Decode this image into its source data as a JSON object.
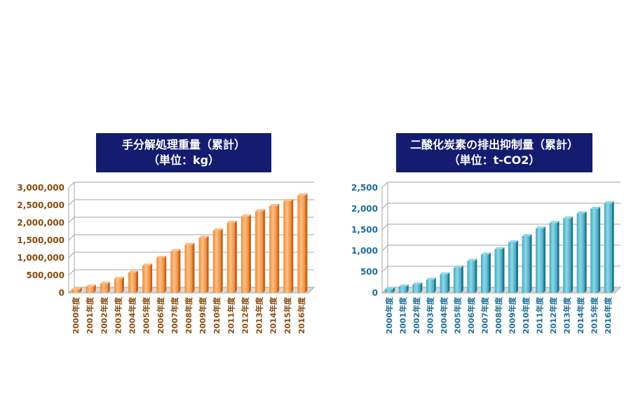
{
  "charts": [
    {
      "id": "left",
      "title_line1": "手分解処理重量（累計）",
      "title_line2": "（単位：kg）",
      "text_color": "#8a4a0a",
      "bar_light": "#fbc08a",
      "bar_mid": "#f28a2e",
      "bar_dark": "#c8631a",
      "yticks": [
        "0",
        "500,000",
        "1,000,000",
        "1,500,000",
        "2,000,000",
        "2,500,000",
        "3,000,000"
      ]
    },
    {
      "id": "right",
      "title_line1": "二酸化炭素の排出抑制量（累計）",
      "title_line2": "（単位：t-CO2）",
      "text_color": "#1a6f9a",
      "bar_light": "#8fd8e6",
      "bar_mid": "#3fa9c1",
      "bar_dark": "#23788e",
      "yticks": [
        "0",
        "500",
        "1,000",
        "1,500",
        "2,000",
        "2,500"
      ]
    }
  ],
  "chart_data": [
    {
      "type": "bar",
      "title": "手分解処理重量（累計）（単位：kg）",
      "categories": [
        "2000年度",
        "2001年度",
        "2002年度",
        "2003年度",
        "2004年度",
        "2005年度",
        "2006年度",
        "2007年度",
        "2008年度",
        "2009年度",
        "2010年度",
        "2011年度",
        "2012年度",
        "2013年度",
        "2014年度",
        "2015年度",
        "2016年度"
      ],
      "values": [
        100000,
        180000,
        260000,
        400000,
        580000,
        780000,
        1000000,
        1190000,
        1370000,
        1570000,
        1780000,
        2000000,
        2180000,
        2330000,
        2480000,
        2620000,
        2780000
      ],
      "ylim": [
        0,
        3000000
      ],
      "grid": true
    },
    {
      "type": "bar",
      "title": "二酸化炭素の排出抑制量（累計）（単位：t-CO2）",
      "categories": [
        "2000年度",
        "2001年度",
        "2002年度",
        "2003年度",
        "2004年度",
        "2005年度",
        "2006年度",
        "2007年度",
        "2008年度",
        "2009年度",
        "2010年度",
        "2011年度",
        "2012年度",
        "2013年度",
        "2014年度",
        "2015年度",
        "2016年度"
      ],
      "values": [
        90,
        150,
        200,
        310,
        440,
        600,
        760,
        910,
        1040,
        1200,
        1350,
        1530,
        1660,
        1770,
        1890,
        2000,
        2130
      ],
      "ylim": [
        0,
        2500
      ],
      "grid": true
    }
  ]
}
